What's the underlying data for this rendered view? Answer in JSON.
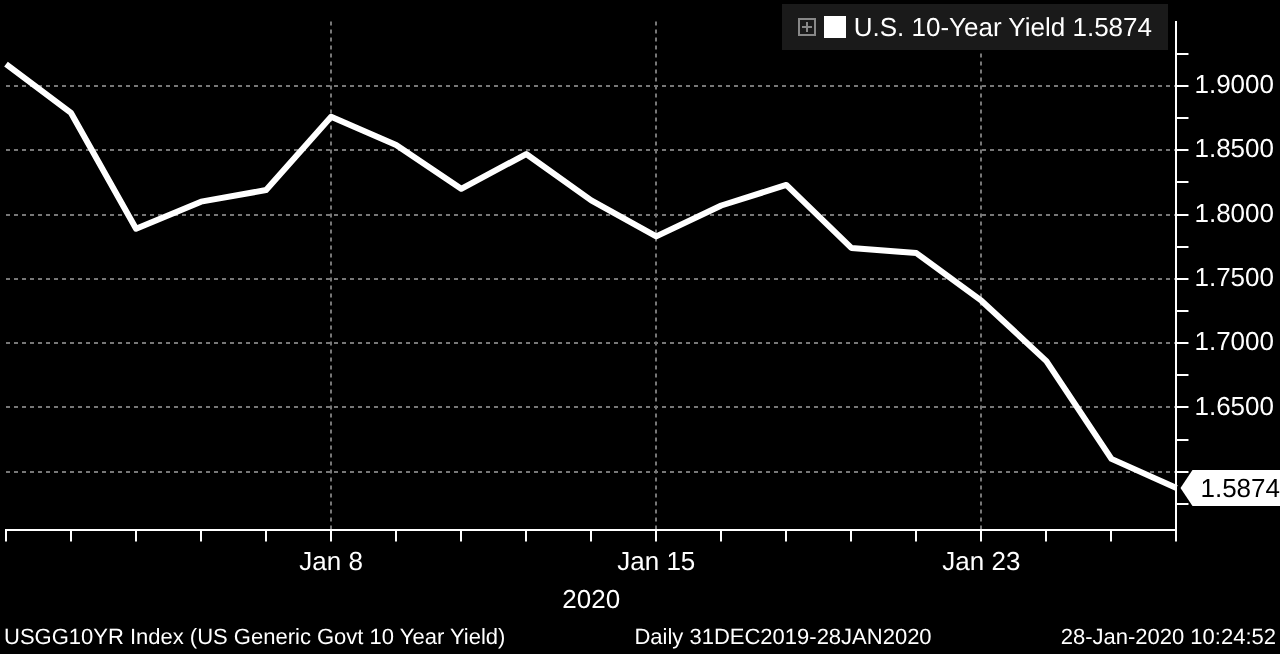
{
  "chart_data": {
    "type": "line",
    "xlabel": "2020",
    "categories": [
      null,
      null,
      null,
      null,
      null,
      "Jan 8",
      null,
      null,
      null,
      null,
      "Jan 15",
      null,
      null,
      null,
      null,
      "Jan 23",
      null,
      null,
      null
    ],
    "series": [
      {
        "name": "U.S. 10-Year Yield 1.5874",
        "color": "#ffffff",
        "values": [
          1.917,
          1.879,
          1.789,
          1.81,
          1.819,
          1.876,
          1.854,
          1.82,
          1.847,
          1.811,
          1.783,
          1.807,
          1.823,
          1.774,
          1.77,
          1.733,
          1.686,
          1.61,
          1.5874
        ],
        "value_labels": [
          null,
          null,
          null,
          null,
          null,
          null,
          null,
          null,
          null,
          null,
          null,
          null,
          null,
          null,
          null,
          null,
          null,
          null,
          "1.5874"
        ]
      }
    ],
    "ylim": [
      1.555,
      1.95
    ],
    "yticks": [
      {
        "value": 1.575,
        "label": null
      },
      {
        "value": 1.6,
        "label": null
      },
      {
        "value": 1.625,
        "label": null
      },
      {
        "value": 1.65,
        "label": "1.6500"
      },
      {
        "value": 1.675,
        "label": null
      },
      {
        "value": 1.7,
        "label": "1.7000"
      },
      {
        "value": 1.725,
        "label": null
      },
      {
        "value": 1.75,
        "label": "1.7500"
      },
      {
        "value": 1.775,
        "label": null
      },
      {
        "value": 1.8,
        "label": "1.8000"
      },
      {
        "value": 1.825,
        "label": null
      },
      {
        "value": 1.85,
        "label": "1.8500"
      },
      {
        "value": 1.875,
        "label": null
      },
      {
        "value": 1.9,
        "label": "1.9000"
      },
      {
        "value": 1.925,
        "label": null
      }
    ],
    "grid": true,
    "legend": "top right",
    "marker": "none",
    "annotations": [
      "USGG10YR Index (US Generic Govt 10 Year Yield)",
      "Daily 31DEC2019-28JAN2020",
      "28-Jan-2020 10:24:52"
    ]
  }
}
